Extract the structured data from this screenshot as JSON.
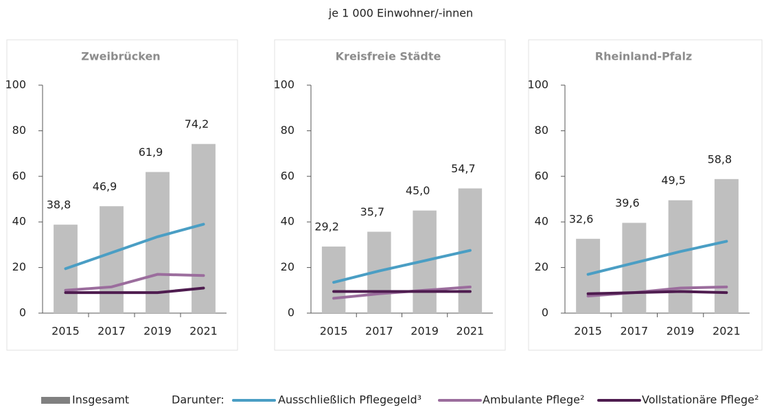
{
  "subtitle": "je 1 000 Einwohner/-innen",
  "legend_label": "Darunter:",
  "chart_data": [
    {
      "type": "bar",
      "title": "Zweibrücken",
      "categories": [
        "2015",
        "2017",
        "2019",
        "2021"
      ],
      "ylim": [
        0,
        100
      ],
      "yticks": [
        0,
        20,
        40,
        60,
        80,
        100
      ],
      "series": [
        {
          "name": "Insgesamt",
          "type": "bar",
          "color": "#bfbfbf",
          "values": [
            38.8,
            46.9,
            61.9,
            74.2
          ],
          "value_labels": [
            "38,8",
            "46,9",
            "61,9",
            "74,2"
          ]
        },
        {
          "name": "Ausschließlich Pflegegeld³",
          "type": "line",
          "color": "#4a9ec4",
          "values": [
            19.5,
            26.5,
            33.5,
            39
          ]
        },
        {
          "name": "Ambulante Pflege²",
          "type": "line",
          "color": "#9b6d9d",
          "values": [
            10,
            11.5,
            17,
            16.5
          ]
        },
        {
          "name": "Vollstationäre Pflege²",
          "type": "line",
          "color": "#4e1c4f",
          "values": [
            9,
            9,
            9,
            11
          ]
        }
      ]
    },
    {
      "type": "bar",
      "title": "Kreisfreie Städte",
      "categories": [
        "2015",
        "2017",
        "2019",
        "2021"
      ],
      "ylim": [
        0,
        100
      ],
      "yticks": [
        0,
        20,
        40,
        60,
        80,
        100
      ],
      "series": [
        {
          "type": "bar",
          "color": "#bfbfbf",
          "values": [
            29.2,
            35.7,
            45.0,
            54.7
          ],
          "value_labels": [
            "29,2",
            "35,7",
            "45,0",
            "54,7"
          ]
        },
        {
          "type": "line",
          "color": "#4a9ec4",
          "values": [
            13.5,
            18.5,
            23,
            27.5
          ]
        },
        {
          "type": "line",
          "color": "#9b6d9d",
          "values": [
            6.5,
            8.5,
            10,
            11.5
          ]
        },
        {
          "type": "line",
          "color": "#4e1c4f",
          "values": [
            9.5,
            9.5,
            9.5,
            9.5
          ]
        }
      ]
    },
    {
      "type": "bar",
      "title": "Rheinland-Pfalz",
      "categories": [
        "2015",
        "2017",
        "2019",
        "2021"
      ],
      "ylim": [
        0,
        100
      ],
      "yticks": [
        0,
        20,
        40,
        60,
        80,
        100
      ],
      "series": [
        {
          "type": "bar",
          "color": "#bfbfbf",
          "values": [
            32.6,
            39.6,
            49.5,
            58.8
          ],
          "value_labels": [
            "32,6",
            "39,6",
            "49,5",
            "58,8"
          ]
        },
        {
          "type": "line",
          "color": "#4a9ec4",
          "values": [
            17,
            22,
            27,
            31.5
          ]
        },
        {
          "type": "line",
          "color": "#9b6d9d",
          "values": [
            7.5,
            9,
            11,
            11.5
          ]
        },
        {
          "type": "line",
          "color": "#4e1c4f",
          "values": [
            8.5,
            9,
            9.5,
            9
          ]
        }
      ]
    }
  ]
}
